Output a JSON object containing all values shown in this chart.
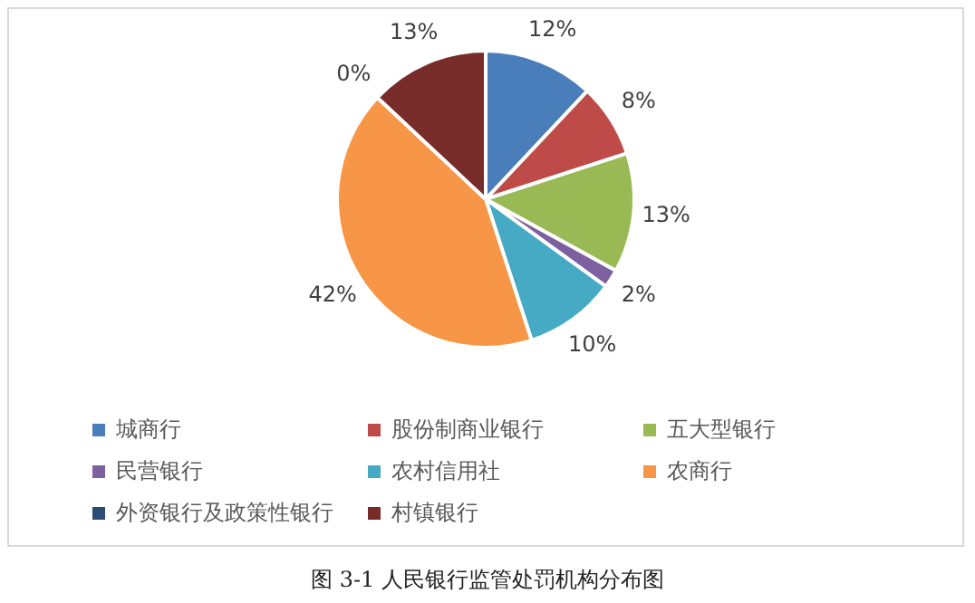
{
  "chart_data": {
    "type": "pie",
    "categories": [
      "城商行",
      "股份制商业银行",
      "五大型银行",
      "民营银行",
      "农村信用社",
      "农商行",
      "外资银行及政策性银行",
      "村镇银行"
    ],
    "values": [
      12,
      8,
      13,
      2,
      10,
      42,
      0,
      13
    ],
    "value_labels": [
      "12%",
      "8%",
      "13%",
      "2%",
      "10%",
      "42%",
      "0%",
      "13%"
    ],
    "colors": [
      "#4a7ebb",
      "#be4b48",
      "#98b954",
      "#7d60a0",
      "#46aac5",
      "#f79646",
      "#2c4d75",
      "#772c2a"
    ],
    "legend": "bottom",
    "annotations": [
      "图 3-1 人民银行监管处罚机构分布图"
    ]
  }
}
